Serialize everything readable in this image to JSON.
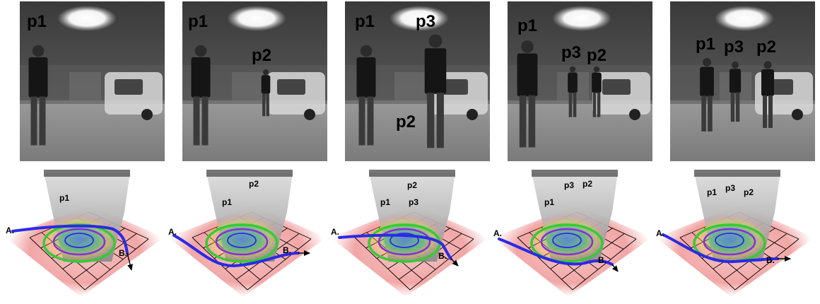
{
  "panels": [
    {
      "photo_labels": [
        "p1"
      ],
      "map_labels": [
        "p1"
      ],
      "start_label": "A.",
      "end_label": "B."
    },
    {
      "photo_labels": [
        "p1",
        "p2"
      ],
      "map_labels": [
        "p1",
        "p2"
      ],
      "start_label": "A.",
      "end_label": "B."
    },
    {
      "photo_labels": [
        "p1",
        "p3",
        "p2"
      ],
      "map_labels": [
        "p1",
        "p2",
        "p3"
      ],
      "start_label": "A.",
      "end_label": "B."
    },
    {
      "photo_labels": [
        "p1",
        "p3",
        "p2"
      ],
      "map_labels": [
        "p1",
        "p3",
        "p2"
      ],
      "start_label": "A.",
      "end_label": "B."
    },
    {
      "photo_labels": [
        "p1",
        "p3",
        "p2"
      ],
      "map_labels": [
        "p1",
        "p3",
        "p2"
      ],
      "start_label": "A.",
      "end_label": "B."
    }
  ],
  "colors": {
    "path": "#2a2ae6",
    "contour_outer": "#33cc33",
    "contour_mid": "#8a2be2",
    "contour_inner": "#2a2ae6",
    "floor": "#f2a6a6"
  }
}
